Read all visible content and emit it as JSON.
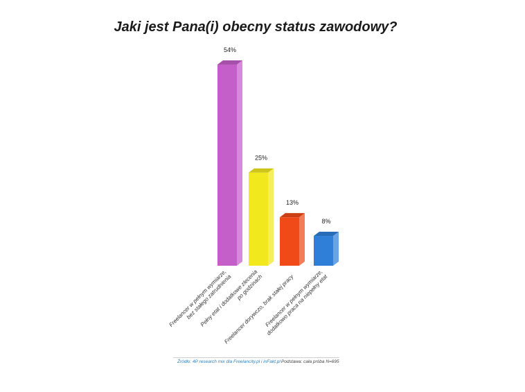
{
  "chart_data": {
    "type": "bar",
    "title": "Jaki jest Pana(i) obecny status zawodowy?",
    "categories": [
      [
        "Freelancer w pełnym wymiarze,",
        "bez stałego zatrudnienia"
      ],
      [
        "Pełny etat i dodatkowe zlecenia",
        "po godzinach"
      ],
      [
        "Freelancer dorywczo, brak stałej pracy"
      ],
      [
        "Freelancer w pełnym wymiarze,",
        "dodatkowo praca na niepełny etat"
      ]
    ],
    "values": [
      54,
      25,
      13,
      8
    ],
    "value_labels": [
      "54%",
      "25%",
      "13%",
      "8%"
    ],
    "colors": [
      "#c45ec8",
      "#f2e81e",
      "#f04a18",
      "#2f7fd8"
    ],
    "ylim": [
      0,
      54
    ],
    "grid": false,
    "xlabel": "",
    "ylabel": ""
  },
  "footer": {
    "source": "Źródło: 4P research mix dla Freelancity.pl i inFakt.pl",
    "base": "Podstawa: cała próba N=695"
  }
}
